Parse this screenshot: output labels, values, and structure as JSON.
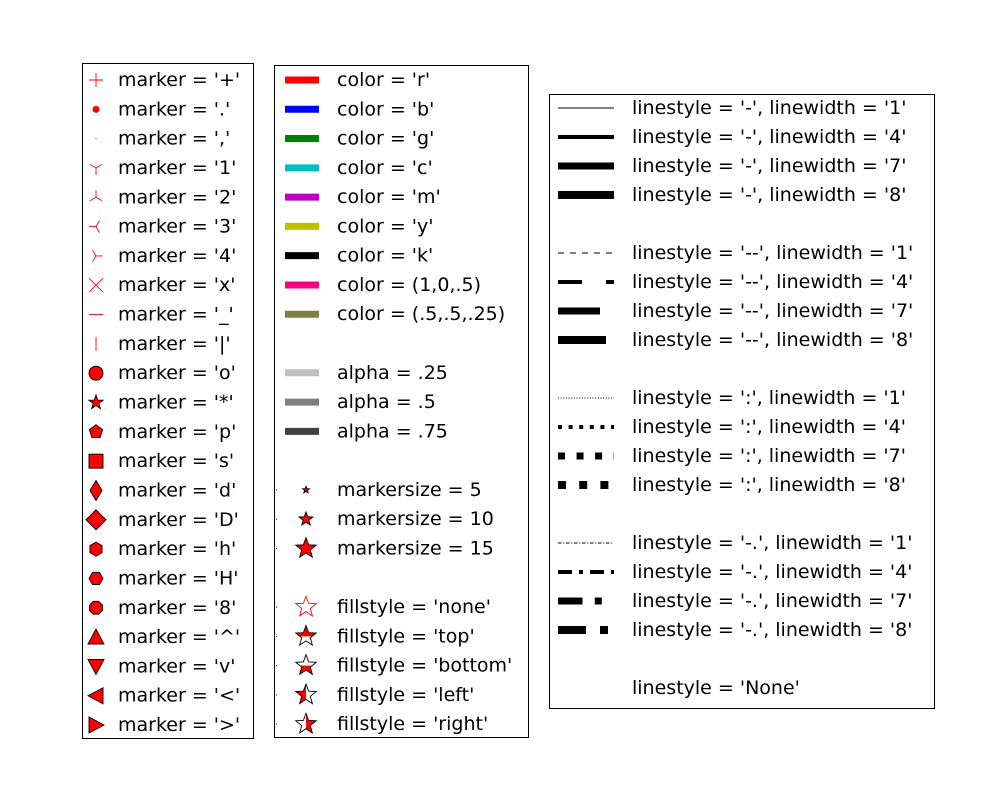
{
  "chart_data": {
    "type": "legend-reference",
    "panels": [
      {
        "kind": "marker",
        "entries": [
          {
            "label": "marker = '+'",
            "marker": "+"
          },
          {
            "label": "marker = '.'",
            "marker": "."
          },
          {
            "label": "marker = ','",
            "marker": ","
          },
          {
            "label": "marker = '1'",
            "marker": "1"
          },
          {
            "label": "marker = '2'",
            "marker": "2"
          },
          {
            "label": "marker = '3'",
            "marker": "3"
          },
          {
            "label": "marker = '4'",
            "marker": "4"
          },
          {
            "label": "marker = 'x'",
            "marker": "x"
          },
          {
            "label": "marker = '_'",
            "marker": "_"
          },
          {
            "label": "marker = '|'",
            "marker": "|"
          },
          {
            "label": "marker = 'o'",
            "marker": "o"
          },
          {
            "label": "marker = '*'",
            "marker": "*"
          },
          {
            "label": "marker = 'p'",
            "marker": "p"
          },
          {
            "label": "marker = 's'",
            "marker": "s"
          },
          {
            "label": "marker = 'd'",
            "marker": "d"
          },
          {
            "label": "marker = 'D'",
            "marker": "D"
          },
          {
            "label": "marker = 'h'",
            "marker": "h"
          },
          {
            "label": "marker = 'H'",
            "marker": "H"
          },
          {
            "label": "marker = '8'",
            "marker": "8"
          },
          {
            "label": "marker = '^'",
            "marker": "^"
          },
          {
            "label": "marker = 'v'",
            "marker": "v"
          },
          {
            "label": "marker = '<'",
            "marker": "<"
          },
          {
            "label": "marker = '>'",
            "marker": ">"
          }
        ]
      },
      {
        "kind": "color",
        "entries": [
          {
            "label": "color = 'r'",
            "kind": "line",
            "color": "#ff0000",
            "alpha": 1
          },
          {
            "label": "color = 'b'",
            "kind": "line",
            "color": "#0000ff",
            "alpha": 1
          },
          {
            "label": "color = 'g'",
            "kind": "line",
            "color": "#008000",
            "alpha": 1
          },
          {
            "label": "color = 'c'",
            "kind": "line",
            "color": "#00bfbf",
            "alpha": 1
          },
          {
            "label": "color = 'm'",
            "kind": "line",
            "color": "#bf00bf",
            "alpha": 1
          },
          {
            "label": "color = 'y'",
            "kind": "line",
            "color": "#bfbf00",
            "alpha": 1
          },
          {
            "label": "color = 'k'",
            "kind": "line",
            "color": "#000000",
            "alpha": 1
          },
          {
            "label": "color = (1,0,.5)",
            "kind": "line",
            "color": "#ff0080",
            "alpha": 1
          },
          {
            "label": "color = (.5,.5,.25)",
            "kind": "line",
            "color": "#808040",
            "alpha": 1
          },
          {
            "kind": "blank"
          },
          {
            "label": "alpha = .25",
            "kind": "line",
            "color": "#000000",
            "alpha": 0.25
          },
          {
            "label": "alpha = .5",
            "kind": "line",
            "color": "#000000",
            "alpha": 0.5
          },
          {
            "label": "alpha = .75",
            "kind": "line",
            "color": "#000000",
            "alpha": 0.75
          },
          {
            "kind": "blank"
          },
          {
            "label": "markersize = 5",
            "kind": "star",
            "markersize": 5,
            "fill": "full"
          },
          {
            "label": "markersize = 10",
            "kind": "star",
            "markersize": 10,
            "fill": "full"
          },
          {
            "label": "markersize = 15",
            "kind": "star",
            "markersize": 15,
            "fill": "full"
          },
          {
            "kind": "blank"
          },
          {
            "label": "fillstyle = 'none'",
            "kind": "star",
            "markersize": 15,
            "fill": "none"
          },
          {
            "label": "fillstyle = 'top'",
            "kind": "star",
            "markersize": 15,
            "fill": "top"
          },
          {
            "label": "fillstyle = 'bottom'",
            "kind": "star",
            "markersize": 15,
            "fill": "bottom"
          },
          {
            "label": "fillstyle = 'left'",
            "kind": "star",
            "markersize": 15,
            "fill": "left"
          },
          {
            "label": "fillstyle = 'right'",
            "kind": "star",
            "markersize": 15,
            "fill": "right"
          }
        ]
      },
      {
        "kind": "linestyle",
        "entries": [
          {
            "label": "linestyle = '-', linewidth = '1'",
            "linestyle": "-",
            "linewidth": 1
          },
          {
            "label": "linestyle = '-', linewidth = '4'",
            "linestyle": "-",
            "linewidth": 4
          },
          {
            "label": "linestyle = '-', linewidth = '7'",
            "linestyle": "-",
            "linewidth": 7
          },
          {
            "label": "linestyle = '-', linewidth = '8'",
            "linestyle": "-",
            "linewidth": 8
          },
          {
            "kind": "blank"
          },
          {
            "label": "linestyle = '--', linewidth = '1'",
            "linestyle": "--",
            "linewidth": 1
          },
          {
            "label": "linestyle = '--', linewidth = '4'",
            "linestyle": "--",
            "linewidth": 4
          },
          {
            "label": "linestyle = '--', linewidth = '7'",
            "linestyle": "--",
            "linewidth": 7
          },
          {
            "label": "linestyle = '--', linewidth = '8'",
            "linestyle": "--",
            "linewidth": 8
          },
          {
            "kind": "blank"
          },
          {
            "label": "linestyle = ':', linewidth = '1'",
            "linestyle": ":",
            "linewidth": 1
          },
          {
            "label": "linestyle = ':', linewidth = '4'",
            "linestyle": ":",
            "linewidth": 4
          },
          {
            "label": "linestyle = ':', linewidth = '7'",
            "linestyle": ":",
            "linewidth": 7
          },
          {
            "label": "linestyle = ':', linewidth = '8'",
            "linestyle": ":",
            "linewidth": 8
          },
          {
            "kind": "blank"
          },
          {
            "label": "linestyle = '-.', linewidth = '1'",
            "linestyle": "-.",
            "linewidth": 1
          },
          {
            "label": "linestyle = '-.', linewidth = '4'",
            "linestyle": "-.",
            "linewidth": 4
          },
          {
            "label": "linestyle = '-.', linewidth = '7'",
            "linestyle": "-.",
            "linewidth": 7
          },
          {
            "label": "linestyle = '-.', linewidth = '8'",
            "linestyle": "-.",
            "linewidth": 8
          },
          {
            "kind": "blank"
          },
          {
            "label": "linestyle = 'None'",
            "linestyle": "None",
            "linewidth": 1
          }
        ]
      }
    ],
    "colors": {
      "marker_face": "#ff0000",
      "marker_edge": "#000000",
      "line": "#000000",
      "frame": "#000000"
    }
  }
}
